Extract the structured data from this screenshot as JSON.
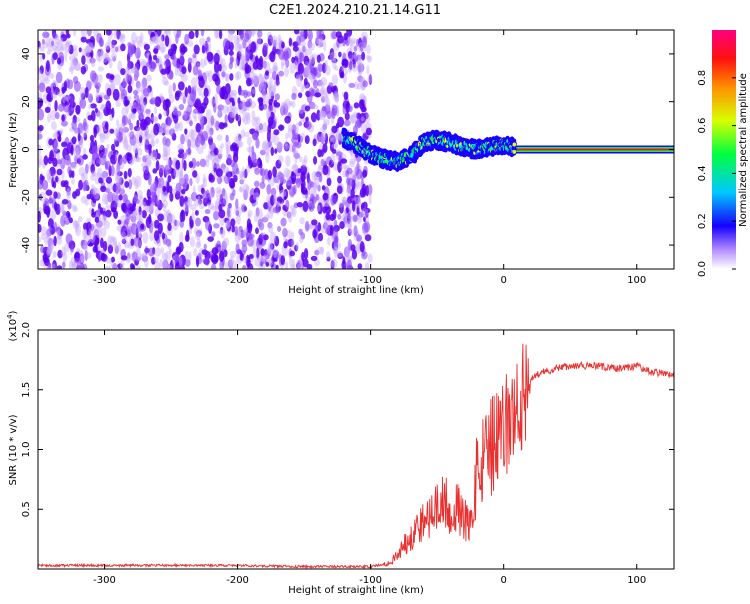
{
  "title": "C2E1.2024.210.21.14.G11",
  "colors": {
    "plot_bg": "#ffffff",
    "axis": "#000000",
    "snr_line": "#e8302f",
    "spec_scatter": "#6a00ff"
  },
  "chart_data": [
    {
      "type": "heatmap",
      "xlabel": "Height of straight line (km)",
      "ylabel": "Frequency (Hz)",
      "xlim": [
        -350,
        128
      ],
      "ylim": [
        -50,
        50
      ],
      "xticks": [
        -300,
        -200,
        -100,
        0,
        100
      ],
      "yticks": [
        -40,
        -20,
        0,
        20,
        40
      ],
      "colorbar": {
        "label": "Normalized spectral amplitude",
        "range": [
          0,
          1
        ],
        "ticks": [
          0.0,
          0.2,
          0.4,
          0.6,
          0.8
        ]
      },
      "noise_region_x": [
        -350,
        -100
      ],
      "signal_trace": [
        {
          "x": -120,
          "y": 5
        },
        {
          "x": -110,
          "y": 2
        },
        {
          "x": -100,
          "y": -2
        },
        {
          "x": -90,
          "y": -4
        },
        {
          "x": -80,
          "y": -5
        },
        {
          "x": -70,
          "y": -3
        },
        {
          "x": -60,
          "y": 3
        },
        {
          "x": -50,
          "y": 4
        },
        {
          "x": -40,
          "y": 3
        },
        {
          "x": -30,
          "y": 1
        },
        {
          "x": -20,
          "y": 0
        },
        {
          "x": -10,
          "y": 1
        },
        {
          "x": 0,
          "y": 2
        },
        {
          "x": 10,
          "y": 0.5
        },
        {
          "x": 128,
          "y": 0
        }
      ],
      "steady_line_x": [
        0,
        128
      ]
    },
    {
      "type": "line",
      "xlabel": "Height of straight line (km)",
      "ylabel": "SNR (10 * v/v)",
      "y_multiplier": "(x10^4)",
      "xlim": [
        -350,
        128
      ],
      "ylim": [
        0,
        2.0
      ],
      "xticks": [
        -300,
        -200,
        -100,
        0,
        100
      ],
      "yticks": [
        0.5,
        1.0,
        1.5,
        2.0
      ],
      "series": [
        {
          "x": [
            -350,
            -300,
            -250,
            -200,
            -150,
            -100,
            -85,
            -75,
            -65,
            -55,
            -45,
            -35,
            -25,
            -20,
            -15,
            -10,
            -5,
            0,
            5,
            10,
            20,
            30,
            40,
            50,
            60,
            70,
            80,
            90,
            100,
            110,
            120,
            128
          ],
          "y": [
            0.03,
            0.03,
            0.03,
            0.03,
            0.02,
            0.02,
            0.05,
            0.2,
            0.35,
            0.45,
            0.55,
            0.5,
            0.35,
            0.8,
            0.9,
            1.0,
            1.05,
            1.15,
            1.25,
            1.35,
            1.6,
            1.65,
            1.68,
            1.7,
            1.7,
            1.7,
            1.68,
            1.68,
            1.7,
            1.65,
            1.64,
            1.62
          ]
        }
      ]
    }
  ]
}
